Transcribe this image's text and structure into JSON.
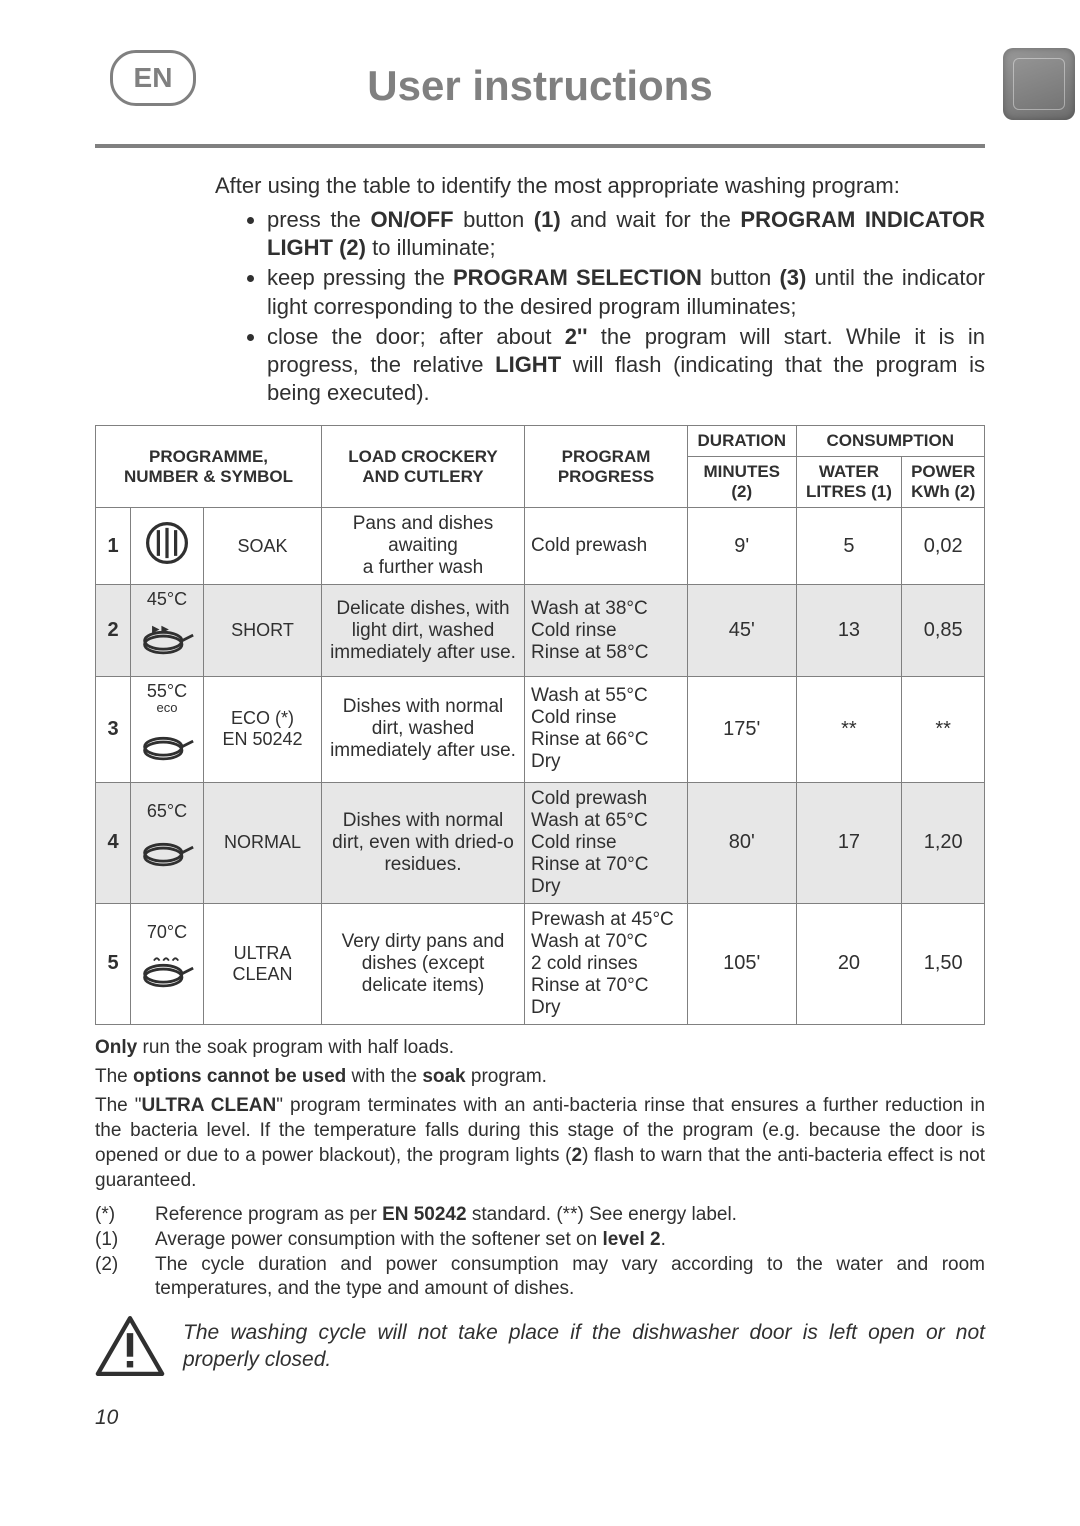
{
  "lang_badge": "EN",
  "title": "User instructions",
  "intro": "After using the table to identify the most appropriate washing program:",
  "bullets": [
    "press the <b>ON/OFF</b> button <b>(1)</b> and wait for the <b>PROGRAM INDICATOR LIGHT (2)</b> to illuminate;",
    "keep pressing the <b>PROGRAM SELECTION</b> button <b>(3)</b> until the indicator light corresponding to the desired program illuminates;",
    "close the door; after about <b>2''</b> the program will start. While it is in progress, the relative <b>LIGHT</b> will flash (indicating that the program is being executed)."
  ],
  "table": {
    "headers": {
      "programme": "PROGRAMME,\nNUMBER & SYMBOL",
      "load": "LOAD CROCKERY\nAND CUTLERY",
      "progress": "PROGRAM\nPROGRESS",
      "duration": "DURATION",
      "minutes": "MINUTES\n(2)",
      "consumption": "CONSUMPTION",
      "water": "WATER\nLITRES (1)",
      "power": "POWER\nKWh (2)"
    },
    "rows": [
      {
        "num": "1",
        "symbol": "soak",
        "temp": "",
        "name": "SOAK",
        "load": "Pans and dishes awaiting\na further wash",
        "progress": "Cold prewash",
        "minutes": "9'",
        "water": "5",
        "power": "0,02",
        "alt": false
      },
      {
        "num": "2",
        "symbol": "pan-ff",
        "temp": "45°C",
        "name": "SHORT",
        "load": "Delicate dishes, with light dirt, washed immediately after use.",
        "progress": "Wash at 38°C\nCold rinse\nRinse at 58°C",
        "minutes": "45'",
        "water": "13",
        "power": "0,85",
        "alt": true
      },
      {
        "num": "3",
        "symbol": "pan",
        "temp": "55°C",
        "temp_sub": "eco",
        "name": "ECO (*)\nEN 50242",
        "load": "Dishes with normal dirt, washed immediately after use.",
        "progress": "Wash at 55°C\nCold rinse\nRinse at 66°C\nDry",
        "minutes": "175'",
        "water": "**",
        "power": "**",
        "alt": false
      },
      {
        "num": "4",
        "symbol": "pan",
        "temp": "65°C",
        "name": "NORMAL",
        "load": "Dishes with normal dirt, even with dried-o residues.",
        "progress": "Cold prewash\nWash at 65°C\nCold rinse\nRinse at 70°C\nDry",
        "minutes": "80'",
        "water": "17",
        "power": "1,20",
        "alt": true
      },
      {
        "num": "5",
        "symbol": "pan-steam",
        "temp": "70°C",
        "name": "ULTRA\nCLEAN",
        "load": "Very dirty pans and dishes (except delicate items)",
        "progress": "Prewash at 45°C\nWash at 70°C\n2 cold rinses\nRinse at 70°C\nDry",
        "minutes": "105'",
        "water": "20",
        "power": "1,50",
        "alt": false
      }
    ]
  },
  "notes_html": [
    "<b>Only</b> run the soak program with half loads.",
    "The <b>options cannot be used</b> with the <b>soak</b> program.",
    "The \"<b>ULTRA CLEAN</b>\" program terminates with an anti-bacteria rinse that ensures a further reduction in the bacteria level. If the temperature falls during this stage of the program (e.g. because the door is opened or due to a power blackout), the program lights (<b>2</b>) flash to warn that the anti-bacteria effect is not guaranteed."
  ],
  "footnotes": [
    {
      "mark": "(*)",
      "text": "Reference program as per <b>EN 50242</b> standard. (**) See energy label."
    },
    {
      "mark": "(1)",
      "text": "Average power consumption with the softener set on <b>level 2</b>."
    },
    {
      "mark": "(2)",
      "text": "The cycle duration and power consumption may vary according to the water and room temperatures, and the type and amount of dishes."
    }
  ],
  "warning": "The washing cycle will not take place if the dishwasher door is left open or not properly closed.",
  "page_number": "10",
  "colors": {
    "text": "#303030",
    "grey": "#808080",
    "row_alt": "#e7e7e7"
  }
}
